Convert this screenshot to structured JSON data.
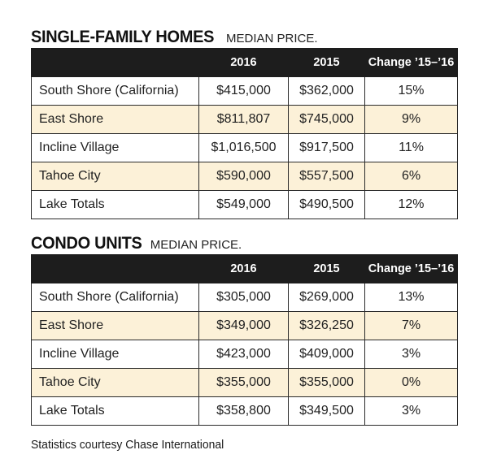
{
  "single_family": {
    "title": "SINGLE-FAMILY HOMES",
    "subtitle": "MEDIAN PRICE.",
    "headers": [
      "",
      "2016",
      "2015",
      "Change ’15–’16"
    ],
    "rows": [
      {
        "region": "South Shore (California)",
        "y2016": "$415,000",
        "y2015": "$362,000",
        "change": "15%"
      },
      {
        "region": "East Shore",
        "y2016": "$811,807",
        "y2015": "$745,000",
        "change": "9%"
      },
      {
        "region": "Incline Village",
        "y2016": "$1,016,500",
        "y2015": "$917,500",
        "change": "11%"
      },
      {
        "region": "Tahoe City",
        "y2016": "$590,000",
        "y2015": "$557,500",
        "change": "6%"
      },
      {
        "region": "Lake Totals",
        "y2016": "$549,000",
        "y2015": "$490,500",
        "change": "12%"
      }
    ]
  },
  "condo": {
    "title": "CONDO UNITS",
    "subtitle": "MEDIAN PRICE.",
    "headers": [
      "",
      "2016",
      "2015",
      "Change ’15–’16"
    ],
    "rows": [
      {
        "region": "South Shore (California)",
        "y2016": "$305,000",
        "y2015": "$269,000",
        "change": "13%"
      },
      {
        "region": "East Shore",
        "y2016": "$349,000",
        "y2015": "$326,250",
        "change": "7%"
      },
      {
        "region": "Incline Village",
        "y2016": "$423,000",
        "y2015": "$409,000",
        "change": "3%"
      },
      {
        "region": "Tahoe City",
        "y2016": "$355,000",
        "y2015": "$355,000",
        "change": "0%"
      },
      {
        "region": "Lake Totals",
        "y2016": "$358,800",
        "y2015": "$349,500",
        "change": "3%"
      }
    ]
  },
  "colors": {
    "header_bg": "#1d1d1d",
    "shaded_row": "#fcf1d8"
  },
  "footer": "Statistics courtesy Chase International"
}
